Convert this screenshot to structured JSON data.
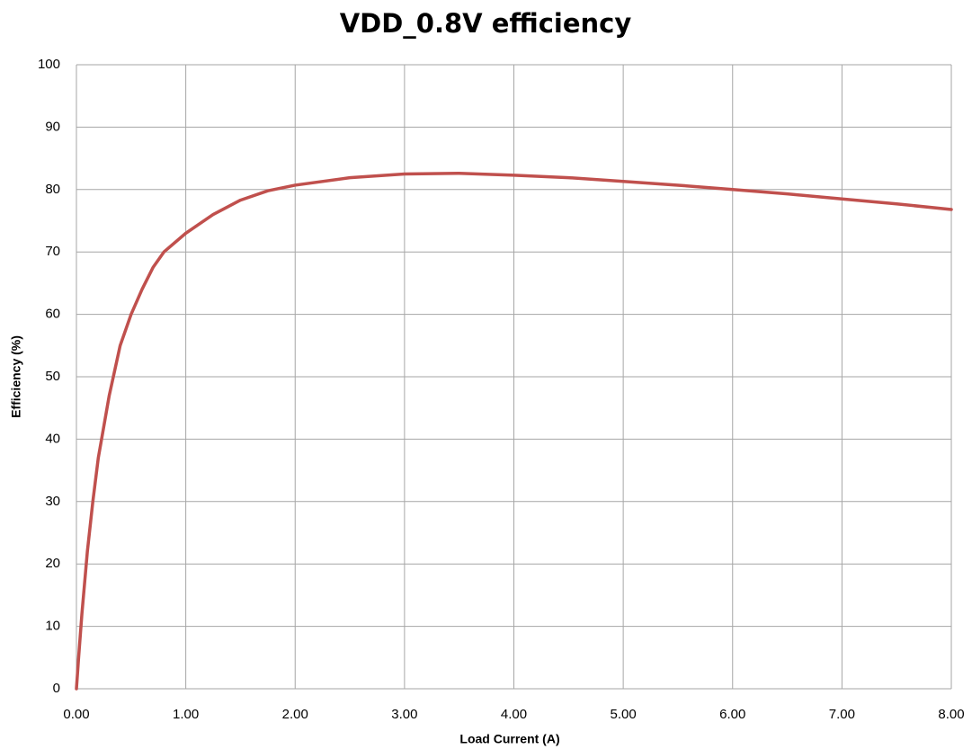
{
  "chart_data": {
    "type": "line",
    "title": "VDD_0.8V efficiency",
    "x_label": "Load Current (A)",
    "y_label": "Efficiency  (%)",
    "x": [
      0,
      0.02,
      0.05,
      0.1,
      0.15,
      0.2,
      0.3,
      0.4,
      0.5,
      0.6,
      0.7,
      0.8,
      1.0,
      1.25,
      1.5,
      1.75,
      2.0,
      2.5,
      3.0,
      3.5,
      4.0,
      4.5,
      5.0,
      5.5,
      6.0,
      6.5,
      7.0,
      7.5,
      8.0
    ],
    "series": [
      {
        "name": "Efficiency",
        "color": "#c0504d",
        "values": [
          0,
          5,
          12,
          22,
          30,
          37,
          47,
          55,
          60,
          64,
          67.5,
          70,
          73,
          76,
          78.3,
          79.8,
          80.7,
          81.9,
          82.5,
          82.6,
          82.3,
          81.9,
          81.3,
          80.7,
          80,
          79.3,
          78.5,
          77.7,
          76.8
        ]
      }
    ],
    "xlim": [
      0,
      8
    ],
    "xticks": [
      {
        "value": 0,
        "label": "0.00"
      },
      {
        "value": 1,
        "label": "1.00"
      },
      {
        "value": 2,
        "label": "2.00"
      },
      {
        "value": 3,
        "label": "3.00"
      },
      {
        "value": 4,
        "label": "4.00"
      },
      {
        "value": 5,
        "label": "5.00"
      },
      {
        "value": 6,
        "label": "6.00"
      },
      {
        "value": 7,
        "label": "7.00"
      },
      {
        "value": 8,
        "label": "8.00"
      }
    ],
    "ylim": [
      0,
      100
    ],
    "yticks": [
      0,
      10,
      20,
      30,
      40,
      50,
      60,
      70,
      80,
      90,
      100
    ],
    "grid": true
  }
}
